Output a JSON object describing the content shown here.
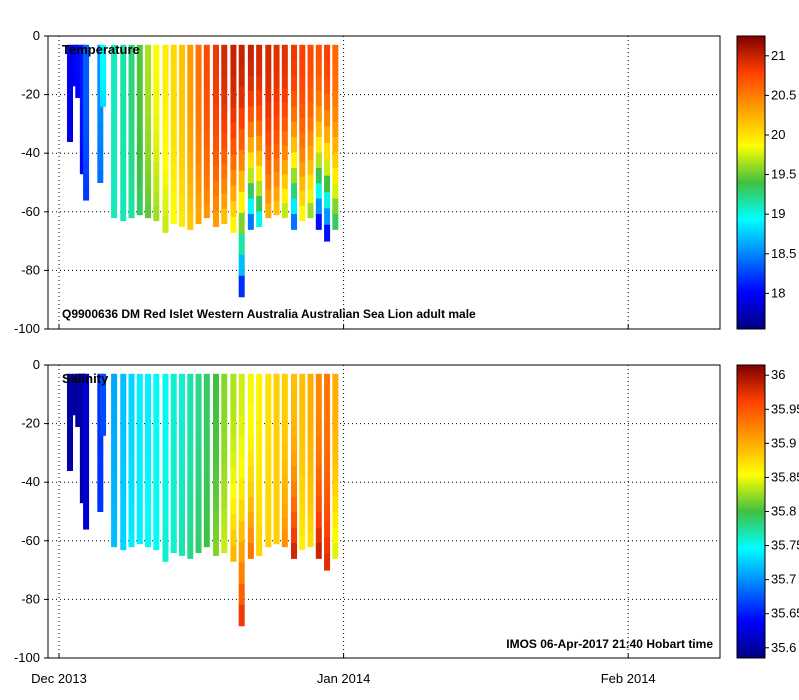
{
  "chart_data": [
    {
      "type": "heatmap",
      "title": "Temperature",
      "annotation": "Q9900636 DM Red Islet Western Australia Australian Sea Lion adult male",
      "xlabel": "",
      "ylabel": "",
      "ylim": [
        -100,
        0
      ],
      "yticks": [
        0,
        -20,
        -40,
        -60,
        -80,
        -100
      ],
      "ytick_labels": [
        "0",
        "-20",
        "-40",
        "-60",
        "-80",
        "-100"
      ],
      "grid": true,
      "colorbar": {
        "range": [
          17.55,
          21.25
        ],
        "ticks": [
          18,
          18.5,
          19,
          19.5,
          20,
          20.5,
          21
        ],
        "tick_labels": [
          "18",
          "18.5",
          "19",
          "19.5",
          "20",
          "20.5",
          "21"
        ]
      },
      "profiles": [
        {
          "day": 1.2,
          "max_depth": 36,
          "surface": 17.95,
          "bottom": 17.9
        },
        {
          "day": 1.75,
          "max_depth": 17,
          "surface": 18.0,
          "bottom": 17.95
        },
        {
          "day": 2.1,
          "max_depth": 21,
          "surface": 18.05,
          "bottom": 18.0
        },
        {
          "day": 2.6,
          "max_depth": 47,
          "surface": 18.1,
          "bottom": 18.0
        },
        {
          "day": 2.95,
          "max_depth": 56,
          "surface": 18.35,
          "bottom": 18.2
        },
        {
          "day": 4.5,
          "max_depth": 50,
          "surface": 18.55,
          "bottom": 18.4
        },
        {
          "day": 4.8,
          "max_depth": 24,
          "surface": 18.95,
          "bottom": 18.8
        },
        {
          "day": 6.0,
          "max_depth": 62,
          "surface": 19.1,
          "bottom": 19.1
        },
        {
          "day": 7.0,
          "max_depth": 63,
          "surface": 19.15,
          "bottom": 19.1
        },
        {
          "day": 7.9,
          "max_depth": 62,
          "surface": 19.25,
          "bottom": 19.15
        },
        {
          "day": 8.8,
          "max_depth": 61,
          "surface": 19.45,
          "bottom": 19.3
        },
        {
          "day": 9.7,
          "max_depth": 62,
          "surface": 19.65,
          "bottom": 19.45
        },
        {
          "day": 10.6,
          "max_depth": 63,
          "surface": 19.85,
          "bottom": 19.6
        },
        {
          "day": 11.6,
          "max_depth": 67,
          "surface": 19.95,
          "bottom": 19.7
        },
        {
          "day": 12.5,
          "max_depth": 64,
          "surface": 20.05,
          "bottom": 19.85
        },
        {
          "day": 13.4,
          "max_depth": 65,
          "surface": 20.15,
          "bottom": 19.95
        },
        {
          "day": 14.3,
          "max_depth": 66,
          "surface": 20.35,
          "bottom": 20.1
        },
        {
          "day": 15.2,
          "max_depth": 64,
          "surface": 20.55,
          "bottom": 20.25
        },
        {
          "day": 16.1,
          "max_depth": 62,
          "surface": 20.75,
          "bottom": 20.35
        },
        {
          "day": 17.1,
          "max_depth": 65,
          "surface": 20.85,
          "bottom": 20.3
        },
        {
          "day": 18.0,
          "max_depth": 64,
          "surface": 20.95,
          "bottom": 20.1
        },
        {
          "day": 19.0,
          "max_depth": 67,
          "surface": 21.0,
          "bottom": 19.8
        },
        {
          "day": 19.9,
          "max_depth": 89,
          "surface": 21.0,
          "bottom": 17.9
        },
        {
          "day": 20.9,
          "max_depth": 66,
          "surface": 21.0,
          "bottom": 18.2
        },
        {
          "day": 21.8,
          "max_depth": 65,
          "surface": 20.95,
          "bottom": 18.8
        },
        {
          "day": 22.8,
          "max_depth": 62,
          "surface": 20.95,
          "bottom": 20.2
        },
        {
          "day": 23.7,
          "max_depth": 61,
          "surface": 20.9,
          "bottom": 20.1
        },
        {
          "day": 24.6,
          "max_depth": 62,
          "surface": 20.9,
          "bottom": 19.6
        },
        {
          "day": 25.6,
          "max_depth": 66,
          "surface": 20.85,
          "bottom": 18.2
        },
        {
          "day": 26.5,
          "max_depth": 63,
          "surface": 20.8,
          "bottom": 19.8
        },
        {
          "day": 27.4,
          "max_depth": 62,
          "surface": 20.75,
          "bottom": 19.5
        },
        {
          "day": 28.3,
          "max_depth": 66,
          "surface": 20.7,
          "bottom": 17.8
        },
        {
          "day": 29.2,
          "max_depth": 70,
          "surface": 20.8,
          "bottom": 17.8
        },
        {
          "day": 30.1,
          "max_depth": 66,
          "surface": 20.6,
          "bottom": 19.2
        }
      ]
    },
    {
      "type": "heatmap",
      "title": "Salinity",
      "annotation": "IMOS 06-Apr-2017 21:40 Hobart time",
      "xlabel": "",
      "ylabel": "",
      "ylim": [
        -100,
        0
      ],
      "yticks": [
        0,
        -20,
        -40,
        -60,
        -80,
        -100
      ],
      "ytick_labels": [
        "0",
        "-20",
        "-40",
        "-60",
        "-80",
        "-100"
      ],
      "grid": true,
      "x_tick_labels": [
        "Dec 2013",
        "Jan 2014",
        "Feb 2014"
      ],
      "x_ticks_day": [
        0,
        31,
        62
      ],
      "colorbar": {
        "range": [
          35.585,
          36.015
        ],
        "ticks": [
          35.6,
          35.65,
          35.7,
          35.75,
          35.8,
          35.85,
          35.9,
          35.95,
          36
        ],
        "tick_labels": [
          "35.6",
          "35.65",
          "35.7",
          "35.75",
          "35.8",
          "35.85",
          "35.9",
          "35.95",
          "36"
        ]
      },
      "profiles": [
        {
          "day": 1.2,
          "max_depth": 36,
          "surface": 35.6,
          "bottom": 35.6
        },
        {
          "day": 1.75,
          "max_depth": 17,
          "surface": 35.6,
          "bottom": 35.6
        },
        {
          "day": 2.1,
          "max_depth": 21,
          "surface": 35.6,
          "bottom": 35.6
        },
        {
          "day": 2.6,
          "max_depth": 47,
          "surface": 35.6,
          "bottom": 35.6
        },
        {
          "day": 2.95,
          "max_depth": 56,
          "surface": 35.62,
          "bottom": 35.62
        },
        {
          "day": 4.5,
          "max_depth": 50,
          "surface": 35.66,
          "bottom": 35.66
        },
        {
          "day": 4.8,
          "max_depth": 24,
          "surface": 35.67,
          "bottom": 35.67
        },
        {
          "day": 6.0,
          "max_depth": 62,
          "surface": 35.71,
          "bottom": 35.72
        },
        {
          "day": 7.0,
          "max_depth": 63,
          "surface": 35.72,
          "bottom": 35.73
        },
        {
          "day": 7.9,
          "max_depth": 62,
          "surface": 35.73,
          "bottom": 35.74
        },
        {
          "day": 8.8,
          "max_depth": 61,
          "surface": 35.74,
          "bottom": 35.74
        },
        {
          "day": 9.7,
          "max_depth": 62,
          "surface": 35.74,
          "bottom": 35.75
        },
        {
          "day": 10.6,
          "max_depth": 63,
          "surface": 35.75,
          "bottom": 35.75
        },
        {
          "day": 11.6,
          "max_depth": 67,
          "surface": 35.75,
          "bottom": 35.76
        },
        {
          "day": 12.5,
          "max_depth": 64,
          "surface": 35.76,
          "bottom": 35.76
        },
        {
          "day": 13.4,
          "max_depth": 65,
          "surface": 35.76,
          "bottom": 35.77
        },
        {
          "day": 14.3,
          "max_depth": 66,
          "surface": 35.77,
          "bottom": 35.78
        },
        {
          "day": 15.2,
          "max_depth": 64,
          "surface": 35.78,
          "bottom": 35.79
        },
        {
          "day": 16.1,
          "max_depth": 62,
          "surface": 35.79,
          "bottom": 35.8
        },
        {
          "day": 17.1,
          "max_depth": 65,
          "surface": 35.8,
          "bottom": 35.82
        },
        {
          "day": 18.0,
          "max_depth": 64,
          "surface": 35.82,
          "bottom": 35.84
        },
        {
          "day": 19.0,
          "max_depth": 67,
          "surface": 35.83,
          "bottom": 35.9
        },
        {
          "day": 19.9,
          "max_depth": 89,
          "surface": 35.84,
          "bottom": 35.98
        },
        {
          "day": 20.9,
          "max_depth": 66,
          "surface": 35.85,
          "bottom": 35.94
        },
        {
          "day": 21.8,
          "max_depth": 65,
          "surface": 35.86,
          "bottom": 35.88
        },
        {
          "day": 22.8,
          "max_depth": 62,
          "surface": 35.87,
          "bottom": 35.88
        },
        {
          "day": 23.7,
          "max_depth": 61,
          "surface": 35.88,
          "bottom": 35.88
        },
        {
          "day": 24.6,
          "max_depth": 62,
          "surface": 35.88,
          "bottom": 35.92
        },
        {
          "day": 25.6,
          "max_depth": 66,
          "surface": 35.89,
          "bottom": 35.99
        },
        {
          "day": 26.5,
          "max_depth": 63,
          "surface": 35.89,
          "bottom": 35.86
        },
        {
          "day": 27.4,
          "max_depth": 62,
          "surface": 35.9,
          "bottom": 35.87
        },
        {
          "day": 28.3,
          "max_depth": 66,
          "surface": 35.92,
          "bottom": 35.99
        },
        {
          "day": 29.2,
          "max_depth": 70,
          "surface": 35.93,
          "bottom": 35.98
        },
        {
          "day": 30.1,
          "max_depth": 66,
          "surface": 35.9,
          "bottom": 35.84
        }
      ]
    }
  ]
}
